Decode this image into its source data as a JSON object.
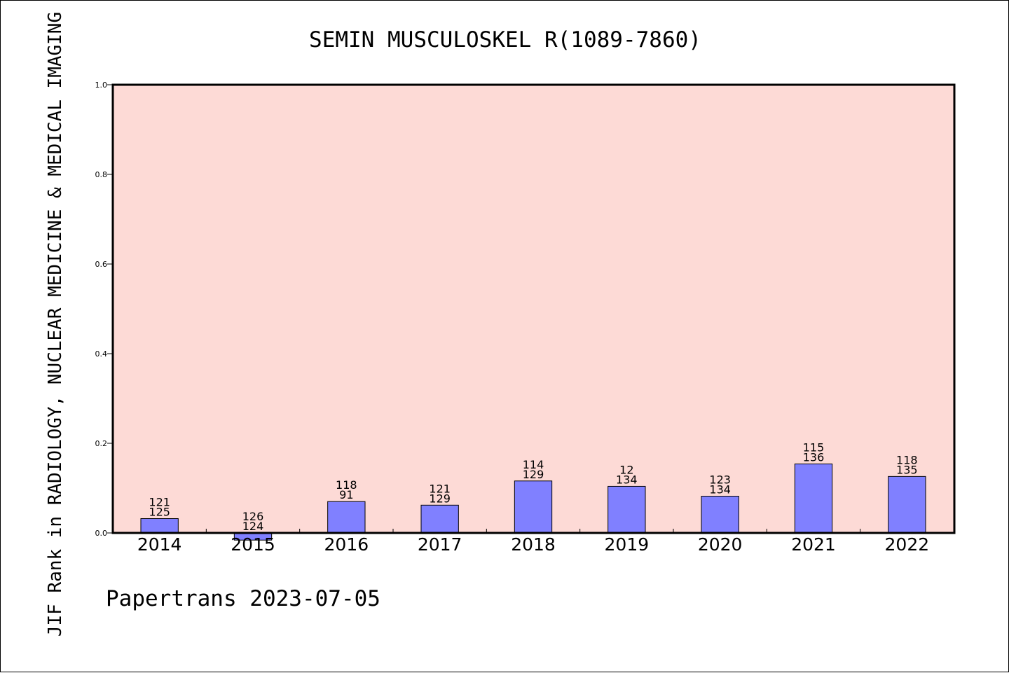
{
  "chart_data": {
    "type": "bar",
    "title": "SEMIN MUSCULOSKEL R(1089-7860)",
    "xlabel": "",
    "ylabel": "JIF Rank in RADIOLOGY, NUCLEAR MEDICINE & MEDICAL IMAGING",
    "ylim": [
      0.0,
      1.0
    ],
    "yticks": [
      "0.0",
      "0.2",
      "0.4",
      "0.6",
      "0.8",
      "1.0"
    ],
    "categories": [
      "2014",
      "2015",
      "2016",
      "2017",
      "2018",
      "2019",
      "2020",
      "2021",
      "2022"
    ],
    "values": [
      0.032,
      -0.016,
      0.07,
      0.062,
      0.116,
      0.104,
      0.082,
      0.154,
      0.126
    ],
    "rank_labels": [
      [
        "121",
        "125"
      ],
      [
        "126",
        "124"
      ],
      [
        "118",
        "91"
      ],
      [
        "121",
        "129"
      ],
      [
        "114",
        "129"
      ],
      [
        "12",
        "134"
      ],
      [
        "123",
        "134"
      ],
      [
        "115",
        "136"
      ],
      [
        "118",
        "135"
      ]
    ],
    "grid": false,
    "colors": {
      "plot_background": "#fddad6",
      "bar_fill": "#8080ff",
      "bar_stroke": "#000000",
      "axis": "#000000"
    }
  },
  "footer": {
    "text": "Papertrans 2023-07-05"
  }
}
